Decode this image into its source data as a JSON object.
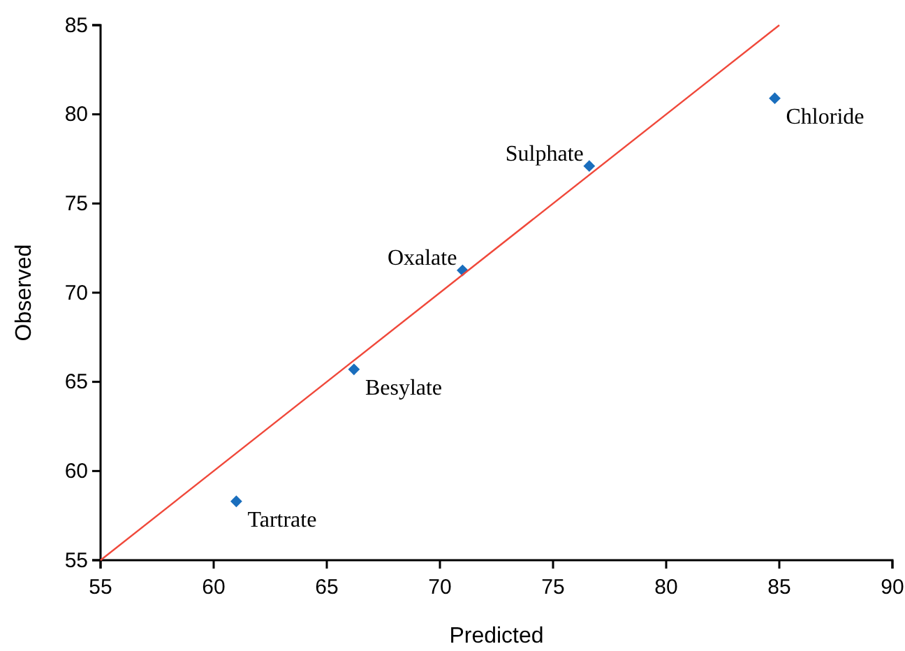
{
  "chart_data": {
    "type": "scatter",
    "xlabel": "Predicted",
    "ylabel": "Observed",
    "xlim": [
      55,
      90
    ],
    "xticks": [
      55,
      60,
      65,
      70,
      75,
      80,
      85,
      90
    ],
    "ylim": [
      55,
      85
    ],
    "yticks": [
      55,
      60,
      65,
      70,
      75,
      80,
      85
    ],
    "grid": false,
    "series": [
      {
        "marker": "diamond",
        "color": "#1a6ebd",
        "x": [
          61.0,
          66.2,
          71.0,
          76.6,
          84.8
        ],
        "values": [
          58.3,
          65.7,
          71.25,
          77.1,
          80.9
        ]
      },
      {
        "type": "line",
        "color": "#f0483a",
        "x": [
          55,
          85
        ],
        "values": [
          55,
          85
        ],
        "line_style": "solid"
      }
    ],
    "annotations": [
      {
        "text": "Tartrate",
        "x": 61.0,
        "y": 58.3
      },
      {
        "text": "Besylate",
        "x": 66.2,
        "y": 65.7
      },
      {
        "text": "Oxalate",
        "x": 71.0,
        "y": 71.25
      },
      {
        "text": "Sulphate",
        "x": 76.6,
        "y": 77.1
      },
      {
        "text": "Chloride",
        "x": 84.8,
        "y": 80.9
      }
    ]
  }
}
